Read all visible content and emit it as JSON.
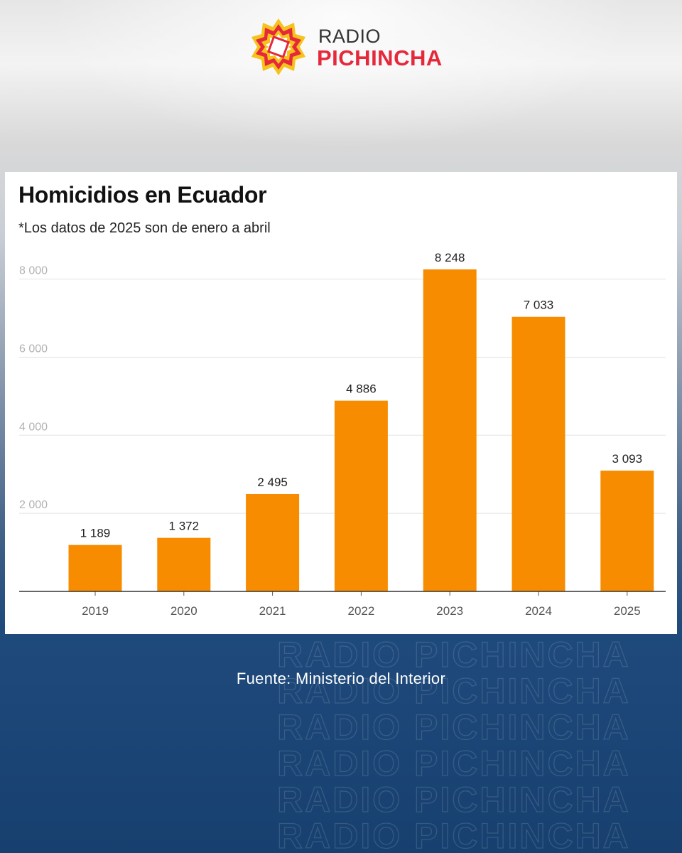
{
  "brand": {
    "name_line1": "RADIO",
    "name_line2": "PICHINCHA",
    "icon": "sun-star-logo-icon",
    "colors": {
      "red": "#e5283a",
      "yellow": "#f6c21c",
      "dark": "#333333"
    }
  },
  "chart_data": {
    "type": "bar",
    "title": "Homicidios en Ecuador",
    "subtitle": "*Los datos de 2025 son de enero a abril",
    "categories": [
      "2019",
      "2020",
      "2021",
      "2022",
      "2023",
      "2024",
      "2025"
    ],
    "values": [
      1189,
      1372,
      2495,
      4886,
      8248,
      7033,
      3093
    ],
    "value_labels": [
      "1 189",
      "1 372",
      "2 495",
      "4 886",
      "8 248",
      "7 033",
      "3 093"
    ],
    "yticks": [
      2000,
      4000,
      6000,
      8000
    ],
    "ytick_labels": [
      "2 000",
      "4 000",
      "6 000",
      "8 000"
    ],
    "ylim": [
      0,
      8248
    ],
    "xlabel": "",
    "ylabel": "",
    "grid": true,
    "bar_color": "#f78c00"
  },
  "source": "Fuente: Ministerio del Interior",
  "watermark_text": "RADIO PICHINCHA"
}
